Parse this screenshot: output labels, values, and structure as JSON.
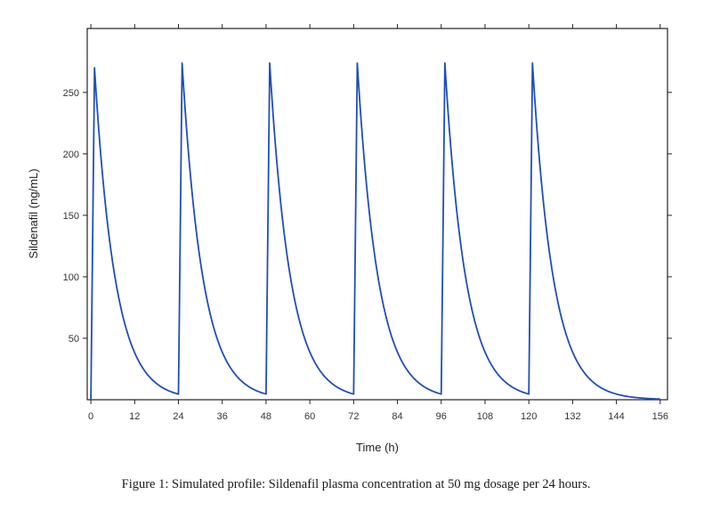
{
  "chart_data": {
    "type": "line",
    "title": "",
    "xlabel": "Time (h)",
    "ylabel": "Sildenafil (ng/mL)",
    "xlim": [
      -1,
      158
    ],
    "ylim": [
      0,
      302
    ],
    "xticks": [
      0,
      12,
      24,
      36,
      48,
      60,
      72,
      84,
      96,
      108,
      120,
      132,
      144,
      156
    ],
    "yticks": [
      50,
      100,
      150,
      200,
      250
    ],
    "grid": false,
    "series": [
      {
        "name": "Sildenafil plasma concentration",
        "color": "#1f4fb4",
        "dose_times_h": [
          0,
          24,
          48,
          72,
          96,
          120
        ],
        "peak_time_after_dose_h": 1,
        "peak_ng_per_ml": 270,
        "half_life_h": 3.9,
        "end_h": 156
      }
    ]
  },
  "caption": "Figure 1: Simulated profile: Sildenafil plasma concentration at 50 mg dosage per 24 hours."
}
